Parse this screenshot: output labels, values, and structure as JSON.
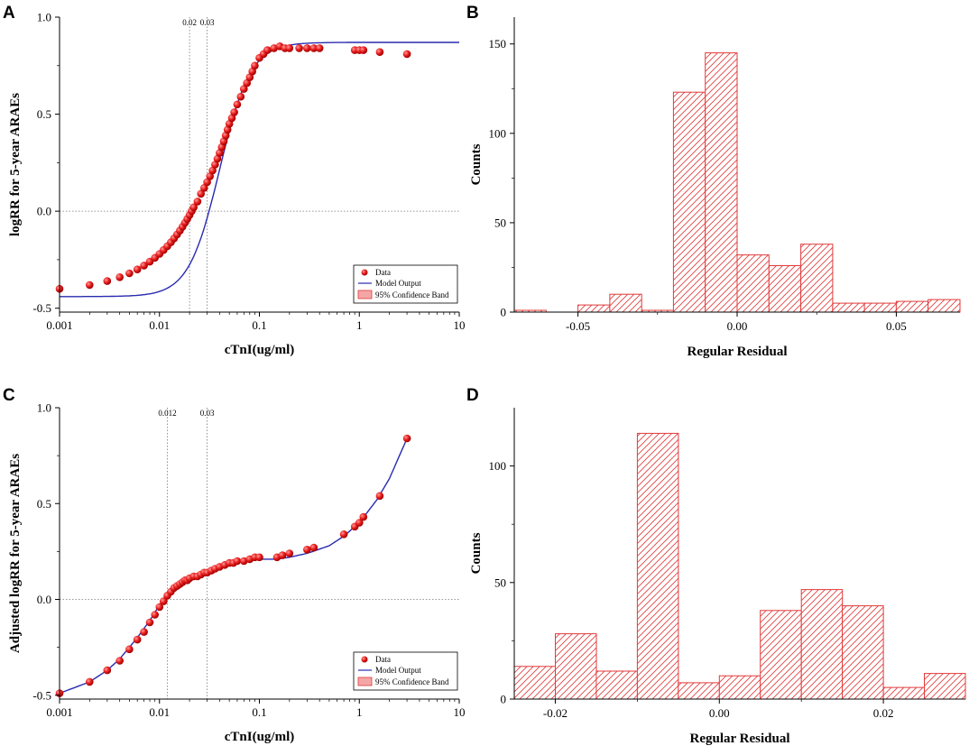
{
  "chart_data": [
    {
      "panel": "A",
      "type": "scatter",
      "xlabel": "cTnI(ug/ml)",
      "ylabel": "logRR for 5-year ARAEs",
      "xscale": "log",
      "xlim": [
        0.001,
        10
      ],
      "ylim": [
        -0.52,
        1.0
      ],
      "x_ticks": [
        "0.001",
        "0.01",
        "0.1",
        "1",
        "10"
      ],
      "y_ticks": [
        "-0.5",
        "0.0",
        "0.5",
        "1.0"
      ],
      "y_tick_values": [
        -0.5,
        0.0,
        0.5,
        1.0
      ],
      "vlines": [
        {
          "x": 0.02,
          "label": "0.02"
        },
        {
          "x": 0.03,
          "label": "0.03"
        }
      ],
      "hline": 0,
      "legend": {
        "position": "bottom-right",
        "entries": [
          "Data",
          "Model Output",
          "95% Confidence Band"
        ]
      },
      "model": {
        "name": "Model Output",
        "form": "logistic-log",
        "bottom": -0.44,
        "top": 0.87,
        "x0": 0.04,
        "slope": 2.8
      },
      "data": {
        "name": "Data",
        "x": [
          0.001,
          0.002,
          0.003,
          0.004,
          0.005,
          0.006,
          0.007,
          0.008,
          0.009,
          0.01,
          0.011,
          0.012,
          0.013,
          0.014,
          0.015,
          0.016,
          0.017,
          0.018,
          0.019,
          0.02,
          0.021,
          0.022,
          0.024,
          0.026,
          0.028,
          0.03,
          0.032,
          0.034,
          0.036,
          0.038,
          0.04,
          0.042,
          0.044,
          0.046,
          0.048,
          0.05,
          0.053,
          0.056,
          0.06,
          0.065,
          0.07,
          0.075,
          0.08,
          0.085,
          0.09,
          0.1,
          0.11,
          0.12,
          0.14,
          0.16,
          0.18,
          0.2,
          0.25,
          0.3,
          0.35,
          0.4,
          0.9,
          1.0,
          1.1,
          1.6,
          3.0
        ],
        "y": [
          -0.4,
          -0.38,
          -0.36,
          -0.34,
          -0.32,
          -0.3,
          -0.28,
          -0.26,
          -0.24,
          -0.22,
          -0.2,
          -0.18,
          -0.16,
          -0.14,
          -0.12,
          -0.1,
          -0.08,
          -0.06,
          -0.04,
          -0.02,
          0.0,
          0.02,
          0.05,
          0.09,
          0.12,
          0.15,
          0.18,
          0.21,
          0.24,
          0.27,
          0.3,
          0.33,
          0.36,
          0.39,
          0.42,
          0.45,
          0.48,
          0.51,
          0.55,
          0.59,
          0.63,
          0.66,
          0.69,
          0.72,
          0.75,
          0.79,
          0.81,
          0.83,
          0.84,
          0.85,
          0.84,
          0.84,
          0.84,
          0.84,
          0.84,
          0.84,
          0.83,
          0.83,
          0.83,
          0.82,
          0.81
        ]
      }
    },
    {
      "panel": "B",
      "type": "bar",
      "xlabel": "Regular Residual",
      "ylabel": "Counts",
      "xlim": [
        -0.07,
        0.07
      ],
      "ylim": [
        0,
        165
      ],
      "x_ticks": [
        "-0.05",
        "0.00",
        "0.05"
      ],
      "x_tick_values": [
        -0.05,
        0.0,
        0.05
      ],
      "y_ticks": [
        "0",
        "50",
        "100",
        "150"
      ],
      "y_tick_values": [
        0,
        50,
        100,
        150
      ],
      "bin_width": 0.01,
      "bins": [
        -0.07,
        -0.06,
        -0.05,
        -0.04,
        -0.03,
        -0.02,
        -0.01,
        0.0,
        0.01,
        0.02,
        0.03,
        0.04,
        0.05,
        0.06
      ],
      "values": [
        1,
        0,
        4,
        10,
        1,
        123,
        145,
        32,
        26,
        38,
        5,
        5,
        6,
        7
      ]
    },
    {
      "panel": "C",
      "type": "scatter",
      "xlabel": "cTnI(ug/ml)",
      "ylabel": "Adjusted logRR for 5-year ARAEs",
      "xscale": "log",
      "xlim": [
        0.001,
        10
      ],
      "ylim": [
        -0.52,
        1.0
      ],
      "x_ticks": [
        "0.001",
        "0.01",
        "0.1",
        "1",
        "10"
      ],
      "y_ticks": [
        "-0.5",
        "0.0",
        "0.5",
        "1.0"
      ],
      "y_tick_values": [
        -0.5,
        0.0,
        0.5,
        1.0
      ],
      "vlines": [
        {
          "x": 0.012,
          "label": "0.012"
        },
        {
          "x": 0.03,
          "label": "0.03"
        }
      ],
      "hline": 0,
      "legend": {
        "position": "bottom-right",
        "entries": [
          "Data",
          "Model Output",
          "95% Confidence Band"
        ]
      },
      "model": {
        "name": "Model Output",
        "x": [
          0.001,
          0.002,
          0.003,
          0.004,
          0.005,
          0.006,
          0.008,
          0.01,
          0.012,
          0.015,
          0.02,
          0.03,
          0.05,
          0.07,
          0.1,
          0.15,
          0.2,
          0.3,
          0.5,
          0.7,
          1.0,
          1.5,
          2.0,
          3.0
        ],
        "y": [
          -0.49,
          -0.43,
          -0.37,
          -0.31,
          -0.25,
          -0.2,
          -0.11,
          -0.03,
          0.03,
          0.07,
          0.1,
          0.14,
          0.18,
          0.2,
          0.21,
          0.21,
          0.22,
          0.24,
          0.28,
          0.33,
          0.4,
          0.52,
          0.63,
          0.84
        ]
      },
      "data": {
        "name": "Data",
        "x": [
          0.001,
          0.002,
          0.003,
          0.004,
          0.005,
          0.006,
          0.007,
          0.008,
          0.009,
          0.01,
          0.011,
          0.012,
          0.013,
          0.014,
          0.015,
          0.016,
          0.017,
          0.018,
          0.019,
          0.02,
          0.022,
          0.024,
          0.026,
          0.028,
          0.03,
          0.033,
          0.036,
          0.04,
          0.045,
          0.05,
          0.055,
          0.06,
          0.07,
          0.08,
          0.09,
          0.1,
          0.15,
          0.17,
          0.2,
          0.3,
          0.35,
          0.7,
          0.9,
          1.0,
          1.1,
          1.6,
          3.0
        ],
        "y": [
          -0.49,
          -0.43,
          -0.37,
          -0.32,
          -0.26,
          -0.21,
          -0.17,
          -0.12,
          -0.08,
          -0.04,
          -0.01,
          0.02,
          0.04,
          0.06,
          0.07,
          0.08,
          0.09,
          0.1,
          0.1,
          0.11,
          0.12,
          0.12,
          0.13,
          0.14,
          0.14,
          0.15,
          0.16,
          0.17,
          0.18,
          0.19,
          0.19,
          0.2,
          0.2,
          0.21,
          0.22,
          0.22,
          0.22,
          0.23,
          0.24,
          0.26,
          0.27,
          0.34,
          0.38,
          0.4,
          0.43,
          0.54,
          0.84
        ]
      }
    },
    {
      "panel": "D",
      "type": "bar",
      "xlabel": "Regular Residual",
      "ylabel": "Counts",
      "xlim": [
        -0.025,
        0.03
      ],
      "ylim": [
        0,
        125
      ],
      "x_ticks": [
        "-0.02",
        "0.00",
        "0.02"
      ],
      "x_tick_values": [
        -0.02,
        0.0,
        0.02
      ],
      "y_ticks": [
        "0",
        "50",
        "100"
      ],
      "y_tick_values": [
        0,
        50,
        100
      ],
      "bin_width": 0.005,
      "bins": [
        -0.025,
        -0.02,
        -0.015,
        -0.01,
        -0.005,
        0.0,
        0.005,
        0.01,
        0.015,
        0.02,
        0.025
      ],
      "values": [
        14,
        28,
        12,
        114,
        7,
        10,
        38,
        47,
        40,
        5,
        11
      ]
    }
  ]
}
